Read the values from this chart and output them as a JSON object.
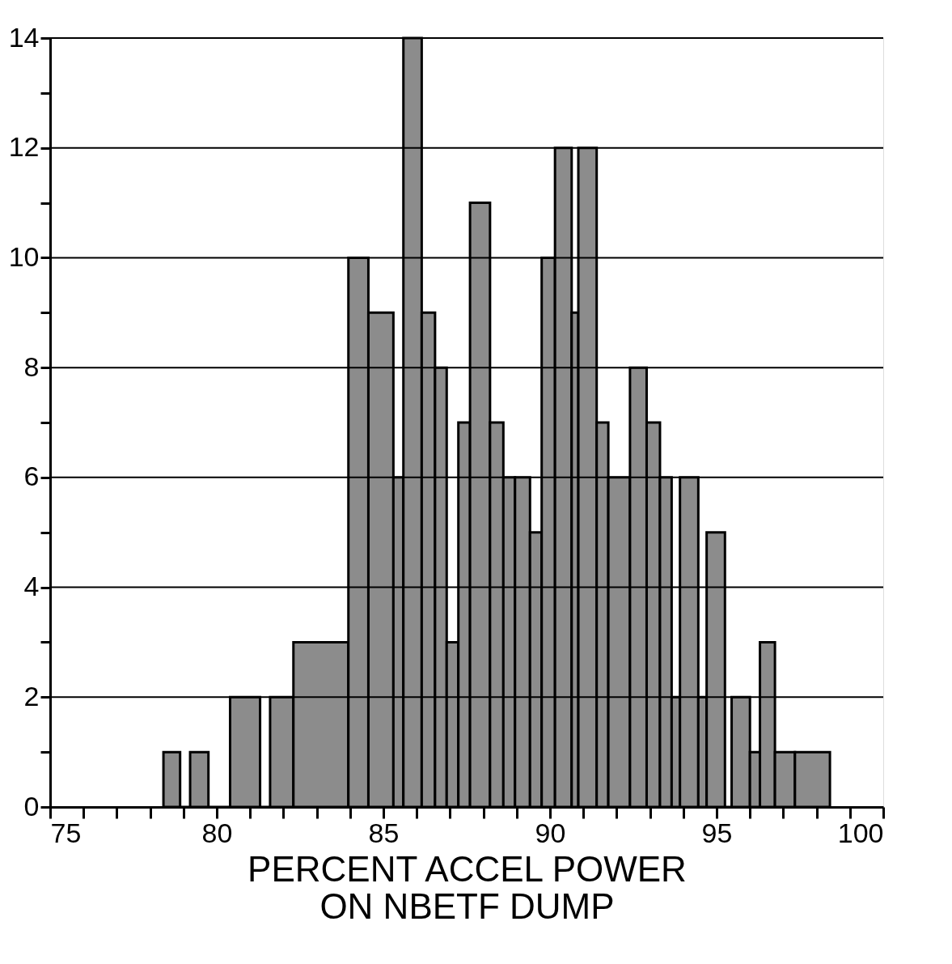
{
  "chart_data": {
    "type": "histogram",
    "xlabel": "PERCENT ACCEL POWER\nON NBETF DUMP",
    "bins": [
      78.4,
      78.9,
      79.2,
      79.75,
      80.4,
      81.3,
      81.6,
      82.3,
      83.95,
      84.55,
      85.3,
      85.6,
      86.15,
      86.55,
      86.9,
      87.25,
      87.6,
      88.2,
      88.6,
      88.95,
      89.4,
      89.75,
      90.15,
      90.65,
      90.85,
      91.4,
      91.75,
      92.4,
      92.9,
      93.3,
      93.65,
      93.9,
      94.45,
      94.7,
      95.25,
      95.45,
      96.0,
      96.3,
      96.75,
      97.35,
      98.4
    ],
    "values": [
      1,
      0,
      1,
      0,
      2,
      0,
      2,
      3,
      10,
      9,
      6,
      14,
      9,
      8,
      3,
      7,
      11,
      7,
      6,
      6,
      5,
      10,
      12,
      9,
      12,
      7,
      6,
      8,
      7,
      6,
      2,
      6,
      2,
      5,
      0,
      2,
      1,
      3,
      1,
      1
    ],
    "color": "#8c8c8c",
    "xlim": [
      75,
      100
    ],
    "xticks": [
      75,
      {
        "value": 76,
        "label": null
      },
      {
        "value": 77,
        "label": null
      },
      {
        "value": 78,
        "label": null
      },
      {
        "value": 79,
        "label": null
      },
      80,
      {
        "value": 81,
        "label": null
      },
      {
        "value": 82,
        "label": null
      },
      {
        "value": 83,
        "label": null
      },
      {
        "value": 84,
        "label": null
      },
      85,
      {
        "value": 86,
        "label": null
      },
      {
        "value": 87,
        "label": null
      },
      {
        "value": 88,
        "label": null
      },
      {
        "value": 89,
        "label": null
      },
      90,
      {
        "value": 91,
        "label": null
      },
      {
        "value": 92,
        "label": null
      },
      {
        "value": 93,
        "label": null
      },
      {
        "value": 94,
        "label": null
      },
      95,
      {
        "value": 96,
        "label": null
      },
      {
        "value": 97,
        "label": null
      },
      {
        "value": 98,
        "label": null
      },
      {
        "value": 99,
        "label": null
      },
      100
    ],
    "ylim": [
      0,
      14
    ],
    "yticks": [
      0,
      {
        "value": 1,
        "label": null
      },
      2,
      {
        "value": 3,
        "label": null
      },
      4,
      {
        "value": 5,
        "label": null
      },
      6,
      {
        "value": 7,
        "label": null
      },
      8,
      {
        "value": 9,
        "label": null
      },
      10,
      {
        "value": 11,
        "label": null
      },
      12,
      {
        "value": 13,
        "label": null
      },
      14
    ],
    "grid": "y"
  }
}
